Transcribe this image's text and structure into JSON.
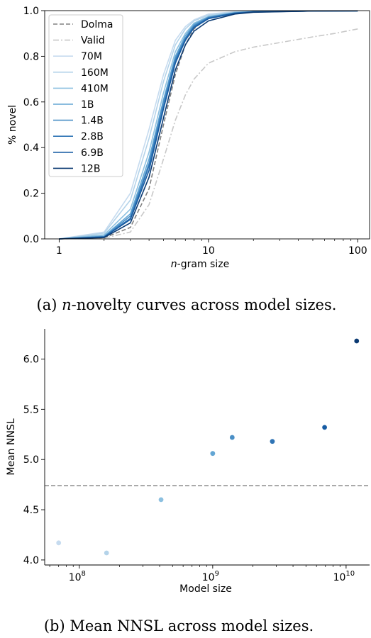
{
  "chart_data": [
    {
      "type": "line",
      "xscale": "log",
      "xlim": [
        0.8,
        120
      ],
      "ylim": [
        0,
        1.0
      ],
      "xlabel_italic": "n",
      "xlabel_rest": "-gram size",
      "ylabel": "% novel",
      "xticks": [
        {
          "value": 1,
          "label": "1"
        },
        {
          "value": 10,
          "label": "10"
        },
        {
          "value": 100,
          "label": "100"
        }
      ],
      "yticks": [
        {
          "value": 0.0,
          "label": "0.0"
        },
        {
          "value": 0.2,
          "label": "0.2"
        },
        {
          "value": 0.4,
          "label": "0.4"
        },
        {
          "value": 0.6,
          "label": "0.6"
        },
        {
          "value": 0.8,
          "label": "0.8"
        },
        {
          "value": 1.0,
          "label": "1.0"
        }
      ],
      "legend_position": "top-left",
      "series": [
        {
          "name": "Dolma",
          "color": "#808080",
          "dash": "dashed",
          "x": [
            1,
            2,
            3,
            4,
            5,
            6,
            7,
            8,
            10,
            15,
            20,
            50,
            100
          ],
          "y": [
            0.0,
            0.005,
            0.05,
            0.22,
            0.5,
            0.72,
            0.85,
            0.92,
            0.975,
            0.99,
            0.995,
            0.998,
            0.999
          ]
        },
        {
          "name": "Valid",
          "color": "#c8c8c8",
          "dash": "dashdot",
          "x": [
            1,
            2,
            3,
            4,
            5,
            6,
            7,
            8,
            10,
            15,
            20,
            30,
            50,
            70,
            100
          ],
          "y": [
            0.0,
            0.003,
            0.03,
            0.15,
            0.35,
            0.52,
            0.63,
            0.7,
            0.77,
            0.82,
            0.84,
            0.86,
            0.885,
            0.9,
            0.92
          ]
        },
        {
          "name": "70M",
          "color": "#c6dbef",
          "dash": "solid",
          "x": [
            1,
            2,
            3,
            4,
            5,
            6,
            7,
            8,
            10,
            15,
            20,
            50,
            100
          ],
          "y": [
            0.0,
            0.03,
            0.2,
            0.48,
            0.72,
            0.87,
            0.93,
            0.96,
            0.985,
            0.995,
            0.997,
            0.999,
            0.999
          ]
        },
        {
          "name": "160M",
          "color": "#b4d3e9",
          "dash": "solid",
          "x": [
            1,
            2,
            3,
            4,
            5,
            6,
            7,
            8,
            10,
            15,
            20,
            50,
            100
          ],
          "y": [
            0.0,
            0.025,
            0.17,
            0.44,
            0.69,
            0.85,
            0.92,
            0.955,
            0.98,
            0.994,
            0.997,
            0.999,
            0.999
          ]
        },
        {
          "name": "410M",
          "color": "#8cc0e0",
          "dash": "solid",
          "x": [
            1,
            2,
            3,
            4,
            5,
            6,
            7,
            8,
            10,
            15,
            20,
            50,
            100
          ],
          "y": [
            0.0,
            0.018,
            0.13,
            0.38,
            0.64,
            0.82,
            0.9,
            0.945,
            0.975,
            0.992,
            0.996,
            0.999,
            0.999
          ]
        },
        {
          "name": "1B",
          "color": "#63a6d4",
          "dash": "solid",
          "x": [
            1,
            2,
            3,
            4,
            5,
            6,
            7,
            8,
            10,
            15,
            20,
            50,
            100
          ],
          "y": [
            0.0,
            0.012,
            0.11,
            0.35,
            0.61,
            0.8,
            0.89,
            0.94,
            0.972,
            0.99,
            0.995,
            0.998,
            0.999
          ]
        },
        {
          "name": "1.4B",
          "color": "#4a8fc6",
          "dash": "solid",
          "x": [
            1,
            2,
            3,
            4,
            5,
            6,
            7,
            8,
            10,
            15,
            20,
            50,
            100
          ],
          "y": [
            0.0,
            0.01,
            0.1,
            0.33,
            0.6,
            0.79,
            0.88,
            0.935,
            0.97,
            0.99,
            0.995,
            0.998,
            0.999
          ]
        },
        {
          "name": "2.8B",
          "color": "#2f74b5",
          "dash": "solid",
          "x": [
            1,
            2,
            3,
            4,
            5,
            6,
            7,
            8,
            10,
            15,
            20,
            50,
            100
          ],
          "y": [
            0.0,
            0.009,
            0.09,
            0.32,
            0.58,
            0.78,
            0.875,
            0.93,
            0.968,
            0.989,
            0.995,
            0.998,
            0.999
          ]
        },
        {
          "name": "6.9B",
          "color": "#175ca3",
          "dash": "solid",
          "x": [
            1,
            2,
            3,
            4,
            5,
            6,
            7,
            8,
            10,
            15,
            20,
            50,
            100
          ],
          "y": [
            0.0,
            0.008,
            0.085,
            0.3,
            0.57,
            0.77,
            0.87,
            0.925,
            0.965,
            0.988,
            0.994,
            0.998,
            0.999
          ]
        },
        {
          "name": "12B",
          "color": "#0b3a72",
          "dash": "solid",
          "x": [
            1,
            2,
            3,
            4,
            5,
            6,
            7,
            8,
            10,
            15,
            20,
            50,
            100
          ],
          "y": [
            0.0,
            0.006,
            0.07,
            0.27,
            0.53,
            0.74,
            0.85,
            0.91,
            0.955,
            0.985,
            0.993,
            0.998,
            0.999
          ]
        }
      ]
    },
    {
      "type": "scatter",
      "xscale": "log",
      "xlim": [
        55000000,
        15000000000
      ],
      "ylim": [
        3.95,
        6.3
      ],
      "xlabel": "Model size",
      "ylabel": "Mean NNSL",
      "xticks": [
        {
          "value": 100000000,
          "base": "10",
          "exp": "8"
        },
        {
          "value": 1000000000,
          "base": "10",
          "exp": "9"
        },
        {
          "value": 10000000000,
          "base": "10",
          "exp": "10"
        }
      ],
      "yticks": [
        {
          "value": 4.0,
          "label": "4.0"
        },
        {
          "value": 4.5,
          "label": "4.5"
        },
        {
          "value": 5.0,
          "label": "5.0"
        },
        {
          "value": 5.5,
          "label": "5.5"
        },
        {
          "value": 6.0,
          "label": "6.0"
        }
      ],
      "reference_line": {
        "y": 4.74,
        "color": "#808080",
        "dash": "dashed"
      },
      "points": [
        {
          "x": 70000000,
          "y": 4.17,
          "color": "#c6dbef"
        },
        {
          "x": 160000000,
          "y": 4.07,
          "color": "#b4d3e9"
        },
        {
          "x": 410000000,
          "y": 4.6,
          "color": "#8cc0e0"
        },
        {
          "x": 1000000000,
          "y": 5.06,
          "color": "#63a6d4"
        },
        {
          "x": 1400000000,
          "y": 5.22,
          "color": "#4a8fc6"
        },
        {
          "x": 2800000000,
          "y": 5.18,
          "color": "#2f74b5"
        },
        {
          "x": 6900000000,
          "y": 5.32,
          "color": "#175ca3"
        },
        {
          "x": 12000000000,
          "y": 6.18,
          "color": "#0b3a72"
        }
      ]
    }
  ],
  "captions": {
    "a_prefix": "(a) ",
    "a_italic": "n",
    "a_rest": "-novelty curves across model sizes.",
    "b_prefix": "(b) Mean ",
    "b_smallcaps": "NNSL",
    "b_rest": " across model sizes."
  }
}
